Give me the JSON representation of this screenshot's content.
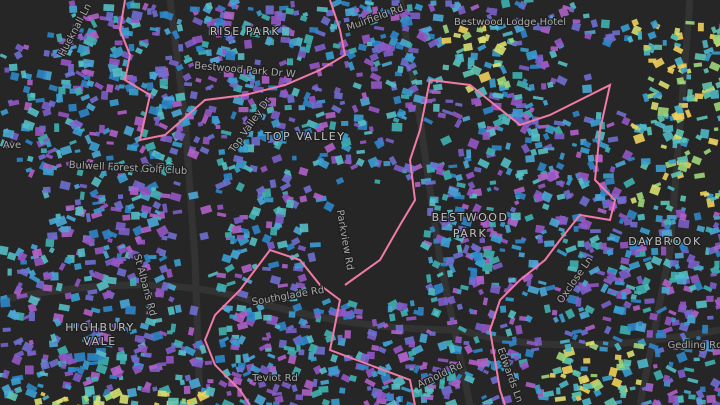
{
  "map": {
    "labels": [
      {
        "text": "Hucknall Ln"
      },
      {
        "text": "RISE PARK"
      },
      {
        "text": "Muirfield Rd"
      },
      {
        "text": "Bestwood Lodge Hotel"
      },
      {
        "text": "Bestwood Park Dr W"
      },
      {
        "text": "Top Valley Dr"
      },
      {
        "text": "TOP VALLEY"
      },
      {
        "text": "Ave"
      },
      {
        "text": "Bulwell Forest Golf Club"
      },
      {
        "text": "Parkview Rd"
      },
      {
        "text": "BESTWOOD"
      },
      {
        "text": "PARK"
      },
      {
        "text": "DAYBROOK"
      },
      {
        "text": "St Albans Rd"
      },
      {
        "text": "Southglade Rd"
      },
      {
        "text": "HIGHBURY"
      },
      {
        "text": "VALE"
      },
      {
        "text": "Oxclose Ln"
      },
      {
        "text": "Gedling Rd"
      },
      {
        "text": "Arnold Rd"
      },
      {
        "text": "Teviot Rd"
      },
      {
        "text": "Edwards Ln"
      }
    ]
  }
}
